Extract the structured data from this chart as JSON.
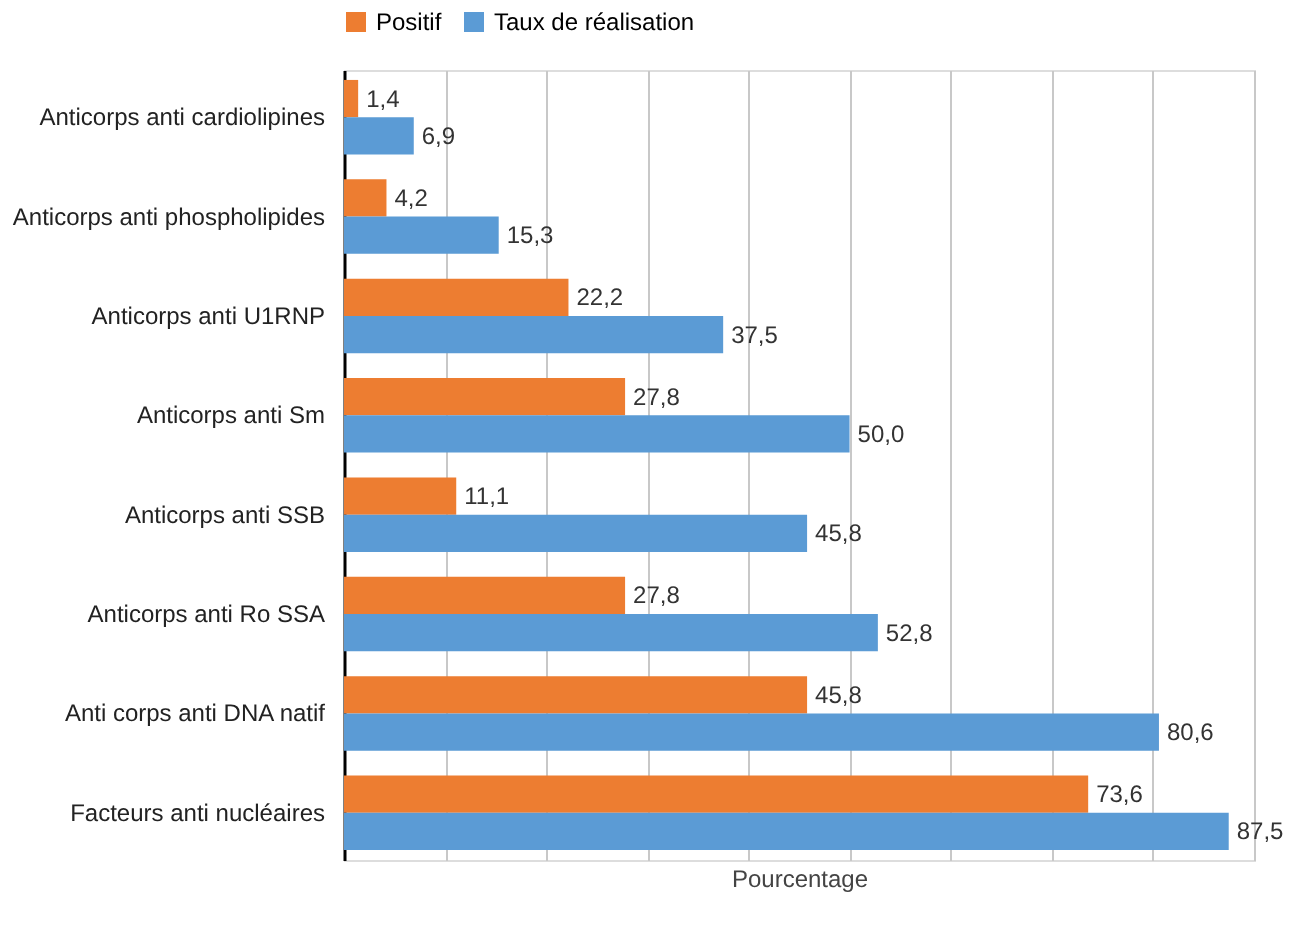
{
  "chart_data": {
    "type": "bar",
    "orientation": "horizontal",
    "xlabel": "Pourcentage",
    "categories": [
      "Anticorps anti cardiolipines",
      "Anticorps anti phospholipides",
      "Anticorps anti U1RNP",
      "Anticorps anti Sm",
      "Anticorps anti SSB",
      "Anticorps anti Ro SSA",
      "Anti corps anti DNA natif",
      "Facteurs anti nucléaires"
    ],
    "series": [
      {
        "name": "Positif",
        "color": "#ed7d31",
        "values": [
          1.4,
          4.2,
          22.2,
          27.8,
          11.1,
          27.8,
          45.8,
          73.6
        ],
        "value_labels": [
          "1,4",
          "4,2",
          "22,2",
          "27,8",
          "11,1",
          "27,8",
          "45,8",
          "73,6"
        ]
      },
      {
        "name": "Taux de réalisation",
        "color": "#5b9bd5",
        "values": [
          6.9,
          15.3,
          37.5,
          50.0,
          45.8,
          52.8,
          80.6,
          87.5
        ],
        "value_labels": [
          "6,9",
          "15,3",
          "37,5",
          "50,0",
          "45,8",
          "52,8",
          "80,6",
          "87,5"
        ]
      }
    ],
    "tick_labels": "y",
    "grid": "x",
    "legend": "top"
  }
}
